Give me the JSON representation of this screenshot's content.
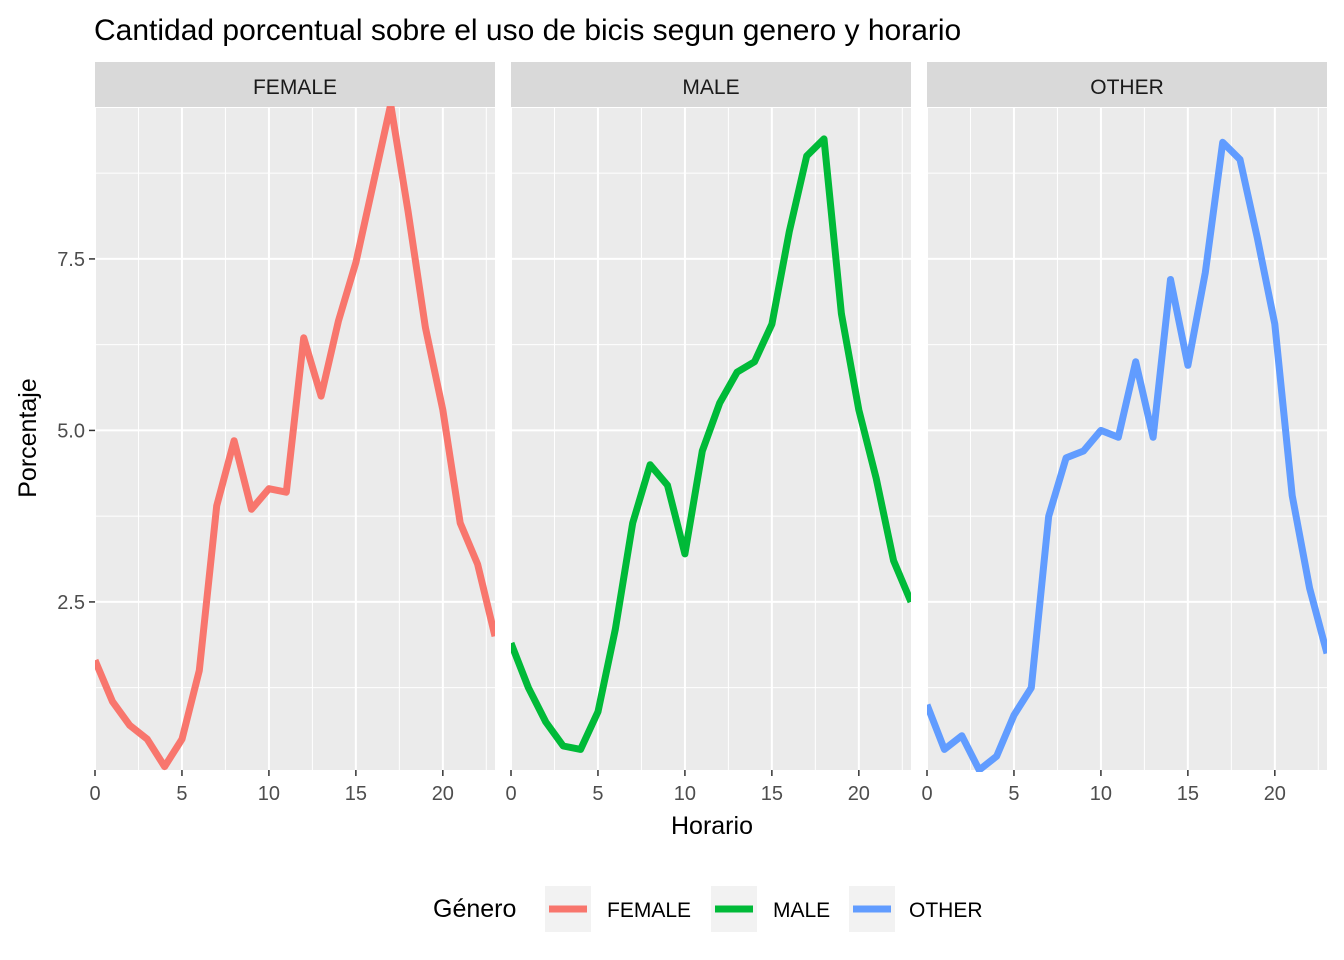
{
  "chart_data": {
    "type": "line",
    "title": "Cantidad porcentual sobre el uso de bicis segun genero y horario",
    "xlabel": "Horario",
    "ylabel": "Porcentaje",
    "xlim": [
      0,
      23
    ],
    "ylim": [
      0.05,
      9.7
    ],
    "x_ticks": [
      0,
      5,
      10,
      15,
      20
    ],
    "y_ticks": [
      2.5,
      5.0,
      7.5
    ],
    "y_tick_labels": [
      "2.5",
      "5.0",
      "7.5"
    ],
    "grid": true,
    "facets": [
      "FEMALE",
      "MALE",
      "OTHER"
    ],
    "legend": {
      "title": "Género",
      "position": "bottom"
    },
    "x": [
      0,
      1,
      2,
      3,
      4,
      5,
      6,
      7,
      8,
      9,
      10,
      11,
      12,
      13,
      14,
      15,
      16,
      17,
      18,
      19,
      20,
      21,
      22,
      23
    ],
    "series": [
      {
        "name": "FEMALE",
        "color": "#F8766D",
        "values": [
          1.65,
          1.05,
          0.7,
          0.5,
          0.1,
          0.5,
          1.5,
          3.9,
          4.85,
          3.85,
          4.15,
          4.1,
          6.35,
          5.5,
          6.6,
          7.45,
          8.6,
          9.75,
          8.2,
          6.5,
          5.3,
          3.65,
          3.05,
          2.0
        ]
      },
      {
        "name": "MALE",
        "color": "#00BA38",
        "values": [
          1.9,
          1.25,
          0.75,
          0.4,
          0.35,
          0.9,
          2.1,
          3.65,
          4.5,
          4.2,
          3.2,
          4.7,
          5.4,
          5.85,
          6.0,
          6.55,
          7.9,
          9.0,
          9.25,
          6.7,
          5.3,
          4.3,
          3.1,
          2.5
        ]
      },
      {
        "name": "OTHER",
        "color": "#619CFF",
        "values": [
          1.0,
          0.35,
          0.55,
          0.05,
          0.25,
          0.85,
          1.25,
          3.75,
          4.6,
          4.7,
          5.0,
          4.9,
          6.0,
          4.9,
          7.2,
          5.95,
          7.3,
          9.2,
          8.95,
          7.8,
          6.55,
          4.05,
          2.7,
          1.75
        ]
      }
    ]
  }
}
